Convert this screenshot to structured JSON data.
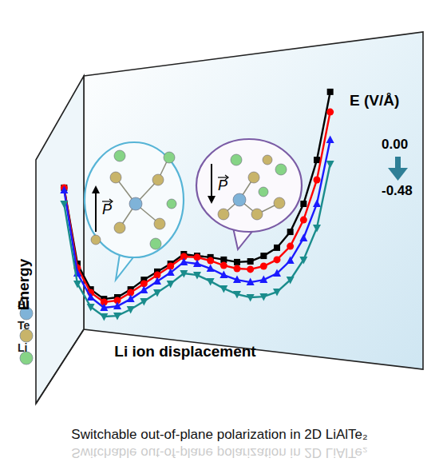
{
  "chart_data": {
    "type": "line",
    "title": "Switchable out-of-plane polarization in 2D LiAlTe₂",
    "x_label": "Li ion displacement",
    "y_label": "Energy",
    "legend_title": "E (V/Å)",
    "legend": "upper right",
    "tick_labels": false,
    "x": [
      0,
      1,
      2,
      3,
      4,
      5,
      6,
      7,
      8,
      9,
      10,
      11,
      12,
      13,
      14,
      15,
      16,
      17,
      18,
      19,
      20
    ],
    "xlim": [
      -0.5,
      20.5
    ],
    "ylim": [
      0,
      12
    ],
    "series": [
      {
        "name": "0.00",
        "color": "#000000",
        "marker": "square",
        "values": [
          7.17,
          4.0,
          2.93,
          2.53,
          2.6,
          2.93,
          3.33,
          3.67,
          4.0,
          4.4,
          4.33,
          4.27,
          4.17,
          4.07,
          4.1,
          4.33,
          4.67,
          5.33,
          6.5,
          8.33,
          11.17
        ]
      },
      {
        "color": "#ff0000",
        "marker": "circle",
        "values": [
          7.17,
          3.83,
          2.8,
          2.4,
          2.47,
          2.8,
          3.17,
          3.53,
          3.9,
          4.3,
          4.27,
          4.13,
          3.93,
          3.8,
          3.77,
          3.9,
          4.17,
          4.73,
          5.83,
          7.5,
          10.33
        ]
      },
      {
        "color": "#1a1aff",
        "marker": "triangle-up",
        "values": [
          7.07,
          3.6,
          2.6,
          2.17,
          2.23,
          2.53,
          2.9,
          3.27,
          3.63,
          4.07,
          4.0,
          3.8,
          3.53,
          3.33,
          3.23,
          3.33,
          3.6,
          4.13,
          5.07,
          6.5,
          9.17
        ]
      },
      {
        "name": "-0.48",
        "color": "#1a8c8c",
        "marker": "triangle-down",
        "values": [
          6.5,
          3.17,
          2.2,
          1.8,
          1.83,
          2.1,
          2.43,
          2.8,
          3.17,
          3.6,
          3.53,
          3.27,
          2.97,
          2.73,
          2.6,
          2.63,
          2.83,
          3.33,
          4.17,
          5.5,
          8.17
        ]
      }
    ],
    "annotations": [
      {
        "text": "P",
        "direction": "up"
      },
      {
        "text": "P",
        "direction": "down"
      }
    ],
    "atoms": [
      {
        "label": "Al",
        "color": "#7fb3d8"
      },
      {
        "label": "Te",
        "color": "#c8b46a"
      },
      {
        "label": "Li",
        "color": "#86d486"
      }
    ]
  }
}
